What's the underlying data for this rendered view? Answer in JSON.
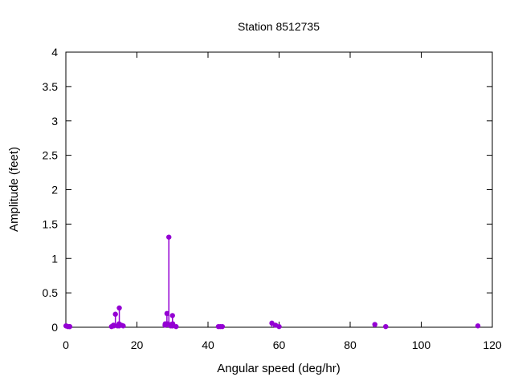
{
  "chart_data": {
    "type": "stem",
    "title": "Station 8512735",
    "xlabel": "Angular speed (deg/hr)",
    "ylabel": "Amplitude (feet)",
    "xlim": [
      0,
      120
    ],
    "ylim": [
      0,
      4
    ],
    "xticks": [
      0,
      20,
      40,
      60,
      80,
      100,
      120
    ],
    "yticks": [
      0,
      0.5,
      1,
      1.5,
      2,
      2.5,
      3,
      3.5,
      4
    ],
    "grid": false,
    "legend": "none",
    "marker_color": "#9400d3",
    "axis_color": "#000000",
    "background_color": "#ffffff",
    "points": [
      [
        0.04,
        0.02
      ],
      [
        0.08,
        0.02
      ],
      [
        0.54,
        0.01
      ],
      [
        1.02,
        0.01
      ],
      [
        1.1,
        0.01
      ],
      [
        12.85,
        0.01
      ],
      [
        13.4,
        0.03
      ],
      [
        13.47,
        0.02
      ],
      [
        13.94,
        0.19
      ],
      [
        14.5,
        0.02
      ],
      [
        14.96,
        0.05
      ],
      [
        15.0,
        0.02
      ],
      [
        15.04,
        0.28
      ],
      [
        15.59,
        0.03
      ],
      [
        16.14,
        0.02
      ],
      [
        27.9,
        0.03
      ],
      [
        27.97,
        0.05
      ],
      [
        28.44,
        0.2
      ],
      [
        28.51,
        0.05
      ],
      [
        28.98,
        1.31
      ],
      [
        29.46,
        0.02
      ],
      [
        29.53,
        0.04
      ],
      [
        29.96,
        0.02
      ],
      [
        30.0,
        0.17
      ],
      [
        30.04,
        0.02
      ],
      [
        30.08,
        0.05
      ],
      [
        31.02,
        0.01
      ],
      [
        42.93,
        0.01
      ],
      [
        43.48,
        0.01
      ],
      [
        44.03,
        0.01
      ],
      [
        57.97,
        0.06
      ],
      [
        58.98,
        0.03
      ],
      [
        60.0,
        0.01
      ],
      [
        86.95,
        0.04
      ],
      [
        90.0,
        0.01
      ],
      [
        115.94,
        0.02
      ]
    ]
  }
}
